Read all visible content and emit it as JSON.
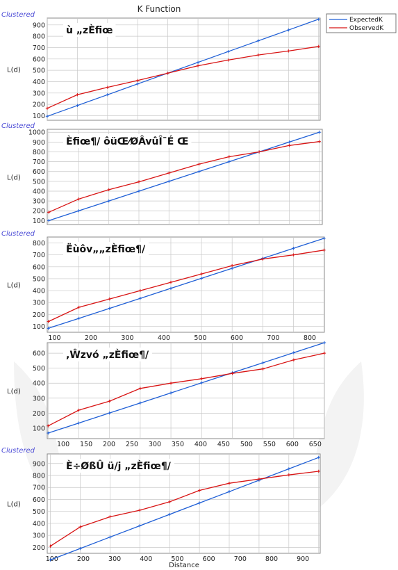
{
  "figure_title": "K Function",
  "x_axis_label": "Distance",
  "legend": {
    "items": [
      {
        "name": "ExpectedK",
        "color": "#1f5fd6"
      },
      {
        "name": "ObservedK",
        "color": "#d81414"
      }
    ]
  },
  "colors": {
    "expected": "#1f5fd6",
    "observed": "#d81414",
    "clustered": "#4a4ad6",
    "grid": "#c8c8c8"
  },
  "chart_data": [
    {
      "type": "line",
      "corner_label": "Clustered",
      "title": "ù   „zÈfiœ",
      "ylabel": "L(d)",
      "xlim": [
        95,
        955
      ],
      "ylim": [
        60,
        960
      ],
      "yticks": [
        100,
        200,
        300,
        400,
        500,
        600,
        700,
        800,
        900
      ],
      "xticks": [],
      "x": [
        95,
        190,
        285,
        380,
        475,
        570,
        665,
        760,
        855,
        950
      ],
      "series": [
        {
          "name": "ExpectedK",
          "values": [
            95,
            190,
            285,
            380,
            475,
            570,
            665,
            760,
            855,
            950
          ]
        },
        {
          "name": "ObservedK",
          "values": [
            165,
            285,
            350,
            410,
            475,
            540,
            590,
            635,
            670,
            710
          ]
        }
      ]
    },
    {
      "type": "line",
      "corner_label": "Clustered",
      "title": "Èfiœ¶/ ôüŒ⁄ØÂvûÎ¯É Œ",
      "ylabel": "L(d)",
      "xlim": [
        95,
        1010
      ],
      "ylim": [
        60,
        1030
      ],
      "yticks": [
        100,
        200,
        300,
        400,
        500,
        600,
        700,
        800,
        900,
        1000
      ],
      "xticks": [],
      "x": [
        100,
        200,
        300,
        400,
        500,
        600,
        700,
        800,
        900,
        1000
      ],
      "series": [
        {
          "name": "ExpectedK",
          "values": [
            100,
            200,
            300,
            400,
            500,
            600,
            700,
            800,
            900,
            1000
          ]
        },
        {
          "name": "ObservedK",
          "values": [
            185,
            320,
            415,
            495,
            585,
            675,
            750,
            800,
            865,
            905
          ]
        }
      ]
    },
    {
      "type": "line",
      "corner_label": "Clustered",
      "title": "Ëùôv„„zÈfiœ¶/",
      "ylabel": "L(d)",
      "xlim": [
        80,
        840
      ],
      "ylim": [
        50,
        850
      ],
      "yticks": [
        100,
        200,
        300,
        400,
        500,
        600,
        700,
        800
      ],
      "xticks": [
        100,
        200,
        300,
        400,
        500,
        600,
        700,
        800
      ],
      "x": [
        83,
        167,
        251,
        335,
        419,
        503,
        587,
        671,
        755,
        839
      ],
      "series": [
        {
          "name": "ExpectedK",
          "values": [
            83,
            167,
            251,
            335,
            419,
            503,
            587,
            671,
            755,
            839
          ]
        },
        {
          "name": "ObservedK",
          "values": [
            140,
            260,
            330,
            400,
            470,
            540,
            610,
            665,
            700,
            740
          ]
        }
      ]
    },
    {
      "type": "line",
      "corner_label": "",
      "title": ",Ŵzvó „zÈfiœ¶/",
      "ylabel": "L(d)",
      "xlim": [
        65,
        670
      ],
      "ylim": [
        30,
        670
      ],
      "yticks": [
        100,
        200,
        300,
        400,
        500,
        600
      ],
      "xticks": [
        100,
        150,
        200,
        250,
        300,
        350,
        400,
        450,
        500,
        550,
        600,
        650
      ],
      "x": [
        67,
        134,
        201,
        268,
        335,
        402,
        469,
        536,
        603,
        670
      ],
      "series": [
        {
          "name": "ExpectedK",
          "values": [
            67,
            134,
            201,
            268,
            335,
            402,
            469,
            536,
            603,
            670
          ]
        },
        {
          "name": "ObservedK",
          "values": [
            115,
            220,
            280,
            365,
            400,
            430,
            465,
            495,
            555,
            600
          ]
        }
      ]
    },
    {
      "type": "line",
      "corner_label": "Clustered",
      "title": "È÷ØßÛ ü/j „zÈfiœ¶/",
      "ylabel": "L(d)",
      "xlim": [
        85,
        955
      ],
      "ylim": [
        150,
        980
      ],
      "yticks": [
        200,
        300,
        400,
        500,
        600,
        700,
        800,
        900
      ],
      "xticks": [
        100,
        200,
        300,
        400,
        500,
        600,
        700,
        800,
        900
      ],
      "x": [
        95,
        190,
        285,
        380,
        475,
        570,
        665,
        760,
        855,
        950
      ],
      "series": [
        {
          "name": "ExpectedK",
          "values": [
            95,
            190,
            285,
            380,
            475,
            570,
            665,
            760,
            855,
            950
          ]
        },
        {
          "name": "ObservedK",
          "values": [
            210,
            370,
            455,
            510,
            580,
            675,
            735,
            770,
            805,
            835
          ]
        }
      ]
    }
  ]
}
